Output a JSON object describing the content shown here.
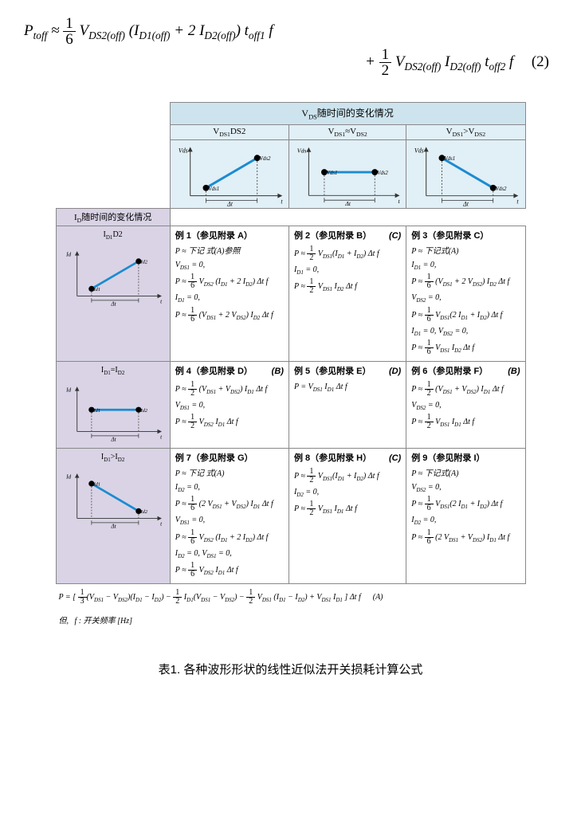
{
  "equation": {
    "line1_html": "P<sub>toff</sub> ≈ <span class='frac'><span class='n'>1</span><span class='d'>6</span></span> V<sub>DS2(off)</sub> (I<sub>D1(off)</sub> + 2 I<sub>D2(off)</sub>) t<sub>off1</sub> f",
    "line2_html": "+ <span class='frac'><span class='n'>1</span><span class='d'>2</span></span> V<sub>DS2(off)</sub> I<sub>D2(off)</sub> t<sub>off2</sub> f",
    "number": "(2)"
  },
  "table": {
    "vds_header": "V<sub>DS</sub>随时间的变化情况",
    "id_header": "I<sub>D</sub>随时间的变化情况",
    "vds_cols": [
      {
        "label": "V<sub>DS1</sub><V<sub>DS2</sub>",
        "slope": "up"
      },
      {
        "label": "V<sub>DS1</sub>≈V<sub>DS2</sub>",
        "slope": "flat"
      },
      {
        "label": "V<sub>DS1</sub>>V<sub>DS2</sub>",
        "slope": "down"
      }
    ],
    "id_rows": [
      {
        "label": "I<sub>D1</sub><I<sub>D2</sub>",
        "slope": "up"
      },
      {
        "label": "I<sub>D1</sub>=I<sub>D2</sub>",
        "slope": "flat"
      },
      {
        "label": "I<sub>D1</sub>>I<sub>D2</sub>",
        "slope": "down"
      }
    ],
    "cells": [
      [
        {
          "title": "例 1（参见附录 A）",
          "lines": [
            "P ≈ 下记 式(A)参照",
            "V<sub>DS1</sub> = 0,",
            "P ≈ <span class='frac'><span class='n'>1</span><span class='d'>6</span></span> V<sub>DS2</sub> (I<sub>D1</sub> + 2 I<sub>D2</sub>) Δt f",
            "I<sub>D1</sub> = 0,",
            "P ≈ <span class='frac'><span class='n'>1</span><span class='d'>6</span></span> (V<sub>DS1</sub> + 2 V<sub>DS2</sub>) I<sub>D2</sub> Δt f"
          ]
        },
        {
          "title": "例 2（参见附录 B）",
          "ref": "(C)",
          "lines": [
            "P ≈ <span class='frac'><span class='n'>1</span><span class='d'>2</span></span> V<sub>DS1</sub>(I<sub>D1</sub> + I<sub>D2</sub>) Δt f",
            "I<sub>D1</sub> = 0,",
            "P ≈ <span class='frac'><span class='n'>1</span><span class='d'>2</span></span> V<sub>DS1</sub> I<sub>D2</sub> Δt f"
          ]
        },
        {
          "title": "例 3（参见附录 C）",
          "lines": [
            "P ≈ 下记式(A)",
            "I<sub>D1</sub> = 0,",
            "P ≈ <span class='frac'><span class='n'>1</span><span class='d'>6</span></span> (V<sub>DS1</sub> + 2 V<sub>DS2</sub>) I<sub>D2</sub> Δt f",
            "V<sub>DS2</sub> = 0,",
            "P ≈ <span class='frac'><span class='n'>1</span><span class='d'>6</span></span> V<sub>DS1</sub>(2 I<sub>D1</sub> + I<sub>D2</sub>) Δt f",
            "I<sub>D1</sub> = 0, V<sub>DS2</sub> = 0,",
            "P ≈ <span class='frac'><span class='n'>1</span><span class='d'>6</span></span> V<sub>DS1</sub> I<sub>D2</sub> Δt f"
          ]
        }
      ],
      [
        {
          "title": "例 4（参见附录 D）",
          "ref": "(B)",
          "lines": [
            "P ≈ <span class='frac'><span class='n'>1</span><span class='d'>2</span></span> (V<sub>DS1</sub> + V<sub>DS2</sub>) I<sub>D1</sub> Δt f",
            "V<sub>DS1</sub> = 0,",
            "P ≈ <span class='frac'><span class='n'>1</span><span class='d'>2</span></span> V<sub>DS2</sub> I<sub>D1</sub> Δt f"
          ]
        },
        {
          "title": "例 5（参见附录 E）",
          "ref": "(D)",
          "lines": [
            "P = V<sub>DS1</sub> I<sub>D1</sub> Δt f"
          ]
        },
        {
          "title": "例 6（参见附录 F）",
          "ref": "(B)",
          "lines": [
            "P ≈ <span class='frac'><span class='n'>1</span><span class='d'>2</span></span> (V<sub>DS1</sub> + V<sub>DS2</sub>) I<sub>D1</sub> Δt f",
            "V<sub>DS2</sub> = 0,",
            "P ≈ <span class='frac'><span class='n'>1</span><span class='d'>2</span></span> V<sub>DS1</sub> I<sub>D1</sub> Δt f"
          ]
        }
      ],
      [
        {
          "title": "例 7（参见附录 G）",
          "lines": [
            "P ≈ 下记 式(A)",
            "I<sub>D2</sub> = 0,",
            "P ≈ <span class='frac'><span class='n'>1</span><span class='d'>6</span></span> (2 V<sub>DS1</sub> + V<sub>DS2</sub>) I<sub>D1</sub> Δt f",
            "V<sub>DS1</sub> = 0,",
            "P ≈ <span class='frac'><span class='n'>1</span><span class='d'>6</span></span> V<sub>DS2</sub> (I<sub>D1</sub> + 2 I<sub>D2</sub>) Δt f",
            "I<sub>D2</sub> = 0, V<sub>DS1</sub> = 0,",
            "P ≈ <span class='frac'><span class='n'>1</span><span class='d'>6</span></span> V<sub>DS2</sub> I<sub>D1</sub> Δt f"
          ]
        },
        {
          "title": "例 8（参见附录 H）",
          "ref": "(C)",
          "lines": [
            "P ≈ <span class='frac'><span class='n'>1</span><span class='d'>2</span></span> V<sub>DS1</sub>(I<sub>D1</sub> + I<sub>D2</sub>) Δt f",
            "I<sub>D2</sub> = 0,",
            "P ≈ <span class='frac'><span class='n'>1</span><span class='d'>2</span></span> V<sub>DS1</sub> I<sub>D1</sub> Δt f"
          ]
        },
        {
          "title": "例 9（参见附录 I）",
          "lines": [
            "P ≈ 下记式(A)",
            "V<sub>DS2</sub> = 0,",
            "P ≈ <span class='frac'><span class='n'>1</span><span class='d'>6</span></span> V<sub>DS1</sub>(2 I<sub>D1</sub> + I<sub>D2</sub>) Δt f",
            "I<sub>D2</sub> = 0,",
            "P ≈ <span class='frac'><span class='n'>1</span><span class='d'>6</span></span> (2 V<sub>DS1</sub> + V<sub>DS2</sub>) I<sub>D1</sub> Δt f"
          ]
        }
      ]
    ],
    "footer_formula": "P = [ <span class='frac'><span class='n'>1</span><span class='d'>3</span></span>(V<sub>DS1</sub> − V<sub>DS2</sub>)(I<sub>D1</sub> − I<sub>D2</sub>) − <span class='frac'><span class='n'>1</span><span class='d'>2</span></span> I<sub>D1</sub>(V<sub>DS1</sub> − V<sub>DS2</sub>) − <span class='frac'><span class='n'>1</span><span class='d'>2</span></span> V<sub>DS1</sub> (I<sub>D1</sub> − I<sub>D2</sub>) + V<sub>DS1</sub> I<sub>D1</sub> ] Δt f &nbsp;&nbsp;&nbsp;&nbsp; (A)",
    "footer_note": "但, &nbsp; f : 开关频率 [Hz]"
  },
  "caption": "表1. 各种波形形状的线性近似法开关损耗计算公式",
  "graph": {
    "stroke": "#1b8bd1",
    "dot": "#000000",
    "dash": "#555555",
    "axis": "#333333",
    "labels": {
      "y_vds": "V<sub>DS</sub>",
      "y_id": "I<sub>D</sub>",
      "x": "t",
      "dt": "Δt"
    }
  }
}
